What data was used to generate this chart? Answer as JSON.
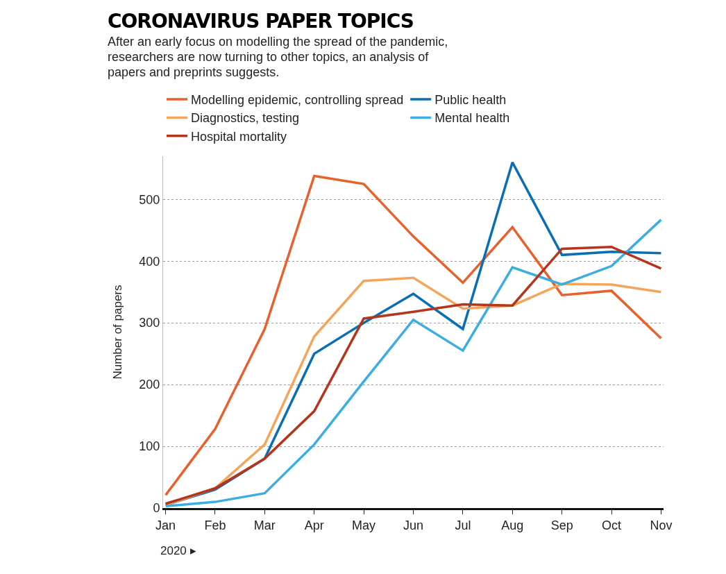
{
  "chart_data": {
    "type": "line",
    "title": "CORONAVIRUS PAPER TOPICS",
    "subtitle": "After an early focus on modelling the spread of the pandemic,\nresearchers are now turning to other topics, an analysis of\npapers and preprints suggests.",
    "ylabel": "Number of papers",
    "categories": [
      "Jan",
      "Feb",
      "Mar",
      "Apr",
      "May",
      "Jun",
      "Jul",
      "Aug",
      "Sep",
      "Oct",
      "Nov"
    ],
    "annotations": [
      "2020 ▸"
    ],
    "series": [
      {
        "name": "Modelling epidemic, controlling spread",
        "color": "#e8602c",
        "values": [
          21,
          128,
          290,
          538,
          525,
          440,
          365,
          455,
          345,
          352,
          275
        ]
      },
      {
        "name": "Public health",
        "color": "#0a6eb4",
        "values": [
          5,
          30,
          80,
          250,
          300,
          347,
          290,
          560,
          410,
          415,
          413
        ]
      },
      {
        "name": "Diagnostics, testing",
        "color": "#f5a55a",
        "values": [
          5,
          32,
          103,
          278,
          368,
          373,
          323,
          328,
          363,
          362,
          350
        ]
      },
      {
        "name": "Mental health",
        "color": "#3aaee0",
        "values": [
          3,
          10,
          24,
          103,
          205,
          305,
          255,
          390,
          362,
          392,
          467
        ]
      },
      {
        "name": "Hospital mortality",
        "color": "#b5341a",
        "values": [
          7,
          32,
          80,
          157,
          307,
          318,
          330,
          328,
          420,
          423,
          388
        ]
      }
    ],
    "ylim": [
      0,
      570
    ],
    "yticks": [
      0,
      100,
      200,
      300,
      400,
      500
    ],
    "grid": "y",
    "legend": "top",
    "marker": "none",
    "line_style": "solid"
  }
}
